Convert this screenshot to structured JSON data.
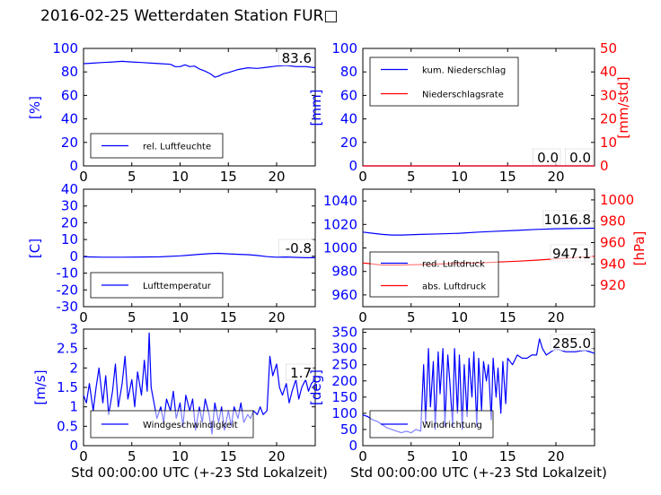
{
  "title": "2016-02-25 Wetterdaten Station FUR□",
  "colors": {
    "blue": "#0000ff",
    "red": "#ff0000",
    "black": "#000000"
  },
  "chart_data": [
    {
      "type": "line",
      "ylabel": "[%]",
      "xlim": [
        0,
        24
      ],
      "ylim": [
        0,
        100
      ],
      "xticks": [
        0,
        5,
        10,
        15,
        20
      ],
      "yticks": [
        0,
        20,
        40,
        60,
        80,
        100
      ],
      "annotation": "83.6",
      "legend": {
        "placement": "lower-left",
        "entries": [
          "rel. Luftfeuchte"
        ]
      },
      "series": [
        {
          "name": "rel. Luftfeuchte",
          "color": "#0000ff",
          "x": [
            0,
            1,
            2,
            3,
            4,
            5,
            6,
            7,
            8,
            9,
            9.5,
            10,
            10.5,
            11,
            11.5,
            12,
            12.5,
            13,
            13.3,
            13.6,
            14,
            14.5,
            15,
            16,
            17,
            18,
            19,
            20,
            21,
            22,
            23,
            24
          ],
          "y": [
            87,
            87.5,
            88,
            88.5,
            89,
            88.5,
            88,
            87.5,
            87,
            86.5,
            84.5,
            84.5,
            86,
            84.5,
            85,
            82.5,
            81,
            79,
            77.5,
            75.5,
            76.5,
            78.5,
            79.5,
            82,
            83.5,
            83,
            84,
            85,
            85.5,
            84.5,
            84.5,
            83.6
          ]
        }
      ]
    },
    {
      "type": "line",
      "ylabel": "[mm]",
      "ylabel_right": "[mm/std]",
      "xlim": [
        0,
        24
      ],
      "ylim": [
        0,
        100
      ],
      "ylim_right": [
        0,
        50
      ],
      "xticks": [
        0,
        5,
        10,
        15,
        20
      ],
      "yticks": [
        0,
        20,
        40,
        60,
        80,
        100
      ],
      "yticks_right": [
        0,
        10,
        20,
        30,
        40,
        50
      ],
      "annotation": "0.0",
      "annotation2": "0.0",
      "legend": {
        "placement": "top-left",
        "entries": [
          "kum. Niederschlag",
          "Niederschlagsrate"
        ]
      },
      "series": [
        {
          "name": "kum. Niederschlag",
          "color": "#0000ff",
          "axis": "left",
          "x": [
            0,
            24
          ],
          "y": [
            0,
            0
          ]
        },
        {
          "name": "Niederschlagsrate",
          "color": "#ff0000",
          "axis": "right",
          "x": [
            0,
            24
          ],
          "y": [
            0,
            0
          ]
        }
      ]
    },
    {
      "type": "line",
      "ylabel": "[C]",
      "xlim": [
        0,
        24
      ],
      "ylim": [
        -30,
        40
      ],
      "xticks": [
        0,
        5,
        10,
        15,
        20
      ],
      "yticks": [
        -30,
        -20,
        -10,
        0,
        10,
        20,
        30,
        40
      ],
      "annotation": "-0.8",
      "legend": {
        "placement": "lower-left",
        "entries": [
          "Lufttemperatur"
        ]
      },
      "series": [
        {
          "name": "Lufttemperatur",
          "color": "#0000ff",
          "x": [
            0,
            2,
            4,
            6,
            8,
            10,
            11,
            12,
            13,
            14,
            15,
            16,
            17,
            18,
            19,
            20,
            21,
            22,
            23,
            24
          ],
          "y": [
            -0.3,
            -0.5,
            -0.5,
            -0.4,
            -0.3,
            0.3,
            0.7,
            1.2,
            1.6,
            1.8,
            1.5,
            1.2,
            1.0,
            0.5,
            -0.2,
            -0.5,
            -0.4,
            -0.6,
            -0.8,
            -0.8
          ]
        }
      ]
    },
    {
      "type": "line",
      "ylabel": "",
      "ylabel_right": "[hPa]",
      "xlim": [
        0,
        24
      ],
      "ylim": [
        950,
        1050
      ],
      "ylim_right": [
        900,
        1010
      ],
      "xticks": [
        0,
        5,
        10,
        15,
        20
      ],
      "yticks": [
        960,
        980,
        1000,
        1020,
        1040
      ],
      "yticks_right": [
        920,
        940,
        960,
        980,
        1000
      ],
      "annotation": "1016.8",
      "annotation2": "947.1",
      "legend": {
        "placement": "lower-left",
        "entries": [
          "red. Luftdruck",
          "abs. Luftdruck"
        ]
      },
      "series": [
        {
          "name": "red. Luftdruck",
          "color": "#0000ff",
          "axis": "left",
          "x": [
            0,
            1,
            2,
            3,
            4,
            6,
            8,
            10,
            12,
            14,
            16,
            18,
            20,
            22,
            24
          ],
          "y": [
            1013.5,
            1012.5,
            1011.5,
            1011,
            1011,
            1011.5,
            1012,
            1012.5,
            1013.5,
            1014.3,
            1015,
            1015.8,
            1016.3,
            1016.6,
            1016.8
          ]
        },
        {
          "name": "abs. Luftdruck",
          "color": "#ff0000",
          "axis": "right",
          "x": [
            0,
            1,
            2,
            3,
            4,
            6,
            8,
            10,
            12,
            14,
            16,
            18,
            20,
            22,
            24
          ],
          "y": [
            941,
            940,
            939,
            939,
            939,
            939.5,
            940,
            940.5,
            941,
            941.8,
            942.6,
            943.6,
            944.8,
            946,
            947.1
          ]
        }
      ]
    },
    {
      "type": "line",
      "ylabel": "[m/s]",
      "xlabel": "Std 00:00:00 UTC (+-23 Std Lokalzeit)",
      "xlim": [
        0,
        24
      ],
      "ylim": [
        0,
        3
      ],
      "xticks": [
        0,
        5,
        10,
        15,
        20
      ],
      "yticks": [
        0,
        0.5,
        1,
        1.5,
        2,
        2.5,
        3
      ],
      "annotation": "1.7",
      "legend": {
        "placement": "lower-left",
        "entries": [
          "Windgeschwindigkeit"
        ]
      },
      "series": [
        {
          "name": "Windgeschwindigkeit",
          "color": "#0000ff",
          "x": [
            0,
            0.3,
            0.6,
            1,
            1.3,
            1.6,
            2,
            2.3,
            2.6,
            3,
            3.3,
            3.6,
            4,
            4.3,
            4.6,
            5,
            5.3,
            5.6,
            6,
            6.3,
            6.6,
            6.8,
            7,
            7.3,
            7.6,
            8,
            8.3,
            8.6,
            9,
            9.3,
            9.6,
            10,
            10.3,
            10.6,
            11,
            11.3,
            11.6,
            12,
            12.3,
            12.6,
            13,
            13.3,
            13.6,
            14,
            14.3,
            14.6,
            15,
            15.3,
            15.6,
            16,
            16.3,
            16.6,
            17,
            17.3,
            17.6,
            18,
            18.3,
            18.6,
            19,
            19.3,
            19.6,
            20,
            20.3,
            20.6,
            21,
            21.3,
            21.6,
            22,
            22.3,
            22.6,
            23,
            23.3,
            23.6,
            24
          ],
          "y": [
            1.3,
            1.1,
            1.6,
            0.9,
            1.5,
            2.0,
            1.1,
            1.8,
            0.8,
            1.4,
            2.1,
            1.0,
            1.6,
            2.3,
            1.2,
            1.7,
            1.0,
            1.9,
            1.3,
            2.2,
            1.4,
            2.9,
            1.5,
            1.1,
            0.7,
            1.0,
            0.6,
            1.2,
            0.9,
            1.4,
            0.7,
            1.1,
            0.5,
            1.3,
            0.9,
            1.2,
            0.4,
            1.0,
            0.6,
            1.2,
            0.8,
            0.3,
            1.1,
            0.6,
            1.0,
            0.4,
            0.9,
            0.5,
            1.0,
            0.7,
            1.1,
            0.6,
            0.8,
            0.7,
            0.9,
            0.8,
            1.0,
            0.8,
            0.9,
            2.3,
            1.8,
            2.1,
            1.5,
            1.3,
            1.6,
            1.1,
            1.4,
            1.7,
            1.2,
            1.5,
            1.7,
            1.4,
            1.6,
            1.7
          ]
        }
      ]
    },
    {
      "type": "line",
      "ylabel": "[deg]",
      "xlabel": "Std 00:00:00 UTC (+-23 Std Lokalzeit)",
      "xlim": [
        0,
        24
      ],
      "ylim": [
        0,
        360
      ],
      "xticks": [
        0,
        5,
        10,
        15,
        20
      ],
      "yticks": [
        0,
        50,
        100,
        150,
        200,
        250,
        300,
        350
      ],
      "annotation": "285.0",
      "legend": {
        "placement": "lower-left",
        "entries": [
          "Windrichtung"
        ]
      },
      "series": [
        {
          "name": "Windrichtung",
          "color": "#0000ff",
          "x": [
            0,
            0.5,
            1,
            1.5,
            2,
            2.5,
            3,
            3.5,
            4,
            4.5,
            5,
            5.5,
            6,
            6.3,
            6.5,
            6.8,
            7,
            7.3,
            7.5,
            7.8,
            8,
            8.3,
            8.5,
            8.8,
            9,
            9.3,
            9.5,
            9.8,
            10,
            10.3,
            10.5,
            10.8,
            11,
            11.3,
            11.5,
            11.8,
            12,
            12.3,
            12.5,
            12.8,
            13,
            13.3,
            13.5,
            13.8,
            14,
            14.3,
            14.5,
            14.8,
            15,
            15.5,
            16,
            16.5,
            17,
            17.5,
            18,
            18.3,
            18.6,
            19,
            19.5,
            20,
            20.5,
            21,
            22,
            23,
            24
          ],
          "y": [
            95,
            90,
            80,
            75,
            65,
            55,
            50,
            45,
            40,
            45,
            40,
            50,
            45,
            250,
            70,
            300,
            120,
            260,
            50,
            290,
            160,
            300,
            60,
            280,
            200,
            60,
            300,
            100,
            280,
            50,
            250,
            90,
            270,
            150,
            290,
            60,
            270,
            110,
            260,
            200,
            250,
            80,
            270,
            150,
            240,
            100,
            260,
            130,
            270,
            250,
            280,
            270,
            270,
            280,
            280,
            330,
            300,
            280,
            290,
            300,
            295,
            290,
            290,
            295,
            285
          ]
        }
      ]
    }
  ]
}
